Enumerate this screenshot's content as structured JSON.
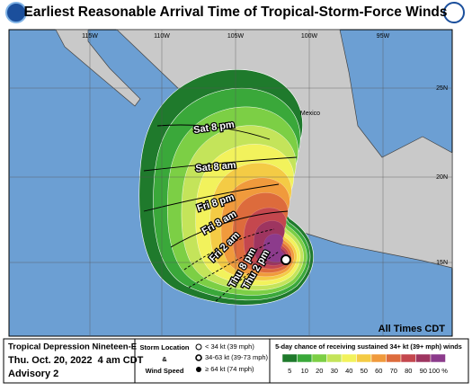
{
  "header": {
    "title": "Earliest Reasonable Arrival Time of Tropical-Storm-Force Winds"
  },
  "map": {
    "lon_labels": [
      "115W",
      "110W",
      "105W",
      "100W",
      "95W"
    ],
    "lat_labels": [
      "25N",
      "20N",
      "15N"
    ],
    "country": "Mexico",
    "times": [
      "Sat 8 pm",
      "Sat 8 am",
      "Fri 8 pm",
      "Fri 8 am",
      "Fri 2 am",
      "Thu 8 pm",
      "Thu 2 pm"
    ],
    "note": "All Times CDT"
  },
  "footer": {
    "storm": {
      "name": "Tropical Depression Nineteen-E",
      "date": "Thu. Oct. 20, 2022  4 am CDT",
      "advisory": "Advisory 2"
    },
    "key": {
      "title_1": "Storm Location",
      "amp": "&",
      "title_2": "Wind Speed",
      "items": [
        "< 34 kt (39 mph)",
        "34-63 kt (39-73 mph)",
        "≥ 64 kt (74 mph)"
      ]
    },
    "scale": {
      "title": "5-day chance of receiving sustained 34+ kt (39+ mph) winds",
      "levels": [
        {
          "label": "5",
          "color": "#1f7a2c"
        },
        {
          "label": "10",
          "color": "#3aa83a"
        },
        {
          "label": "20",
          "color": "#7ccf45"
        },
        {
          "label": "30",
          "color": "#c4e45a"
        },
        {
          "label": "40",
          "color": "#f2f25c"
        },
        {
          "label": "50",
          "color": "#f4cb45"
        },
        {
          "label": "60",
          "color": "#f09a3c"
        },
        {
          "label": "70",
          "color": "#dd6b3c"
        },
        {
          "label": "80",
          "color": "#c4474e"
        },
        {
          "label": "90",
          "color": "#9e3560"
        },
        {
          "label": "100 %",
          "color": "#8c3b8c"
        }
      ]
    }
  }
}
